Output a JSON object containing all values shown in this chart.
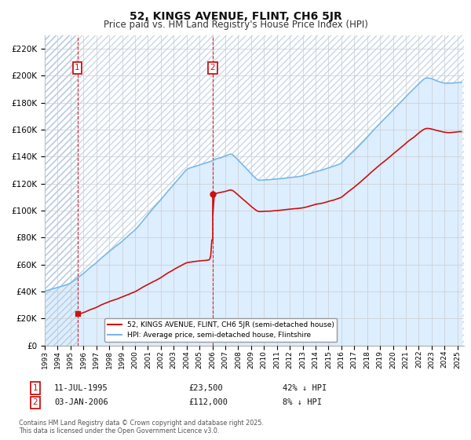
{
  "title": "52, KINGS AVENUE, FLINT, CH6 5JR",
  "subtitle": "Price paid vs. HM Land Registry's House Price Index (HPI)",
  "ylim": [
    0,
    230000
  ],
  "yticks": [
    0,
    20000,
    40000,
    60000,
    80000,
    100000,
    120000,
    140000,
    160000,
    180000,
    200000,
    220000
  ],
  "xlim_start": 1993.0,
  "xlim_end": 2025.5,
  "sale1_year": 1995.53,
  "sale1_price": 23500,
  "sale2_year": 2006.01,
  "sale2_price": 112000,
  "hpi_color": "#7ab8e8",
  "hpi_fill_color": "#ddeeff",
  "price_color": "#cc1111",
  "vline_color": "#cc1111",
  "grid_color": "#cccccc",
  "background_color": "#ffffff",
  "legend_label_price": "52, KINGS AVENUE, FLINT, CH6 5JR (semi-detached house)",
  "legend_label_hpi": "HPI: Average price, semi-detached house, Flintshire",
  "annotation1_date": "11-JUL-1995",
  "annotation1_price": "£23,500",
  "annotation1_hpi": "42% ↓ HPI",
  "annotation2_date": "03-JAN-2006",
  "annotation2_price": "£112,000",
  "annotation2_hpi": "8% ↓ HPI",
  "footnote": "Contains HM Land Registry data © Crown copyright and database right 2025.\nThis data is licensed under the Open Government Licence v3.0.",
  "title_fontsize": 10,
  "subtitle_fontsize": 8.5
}
